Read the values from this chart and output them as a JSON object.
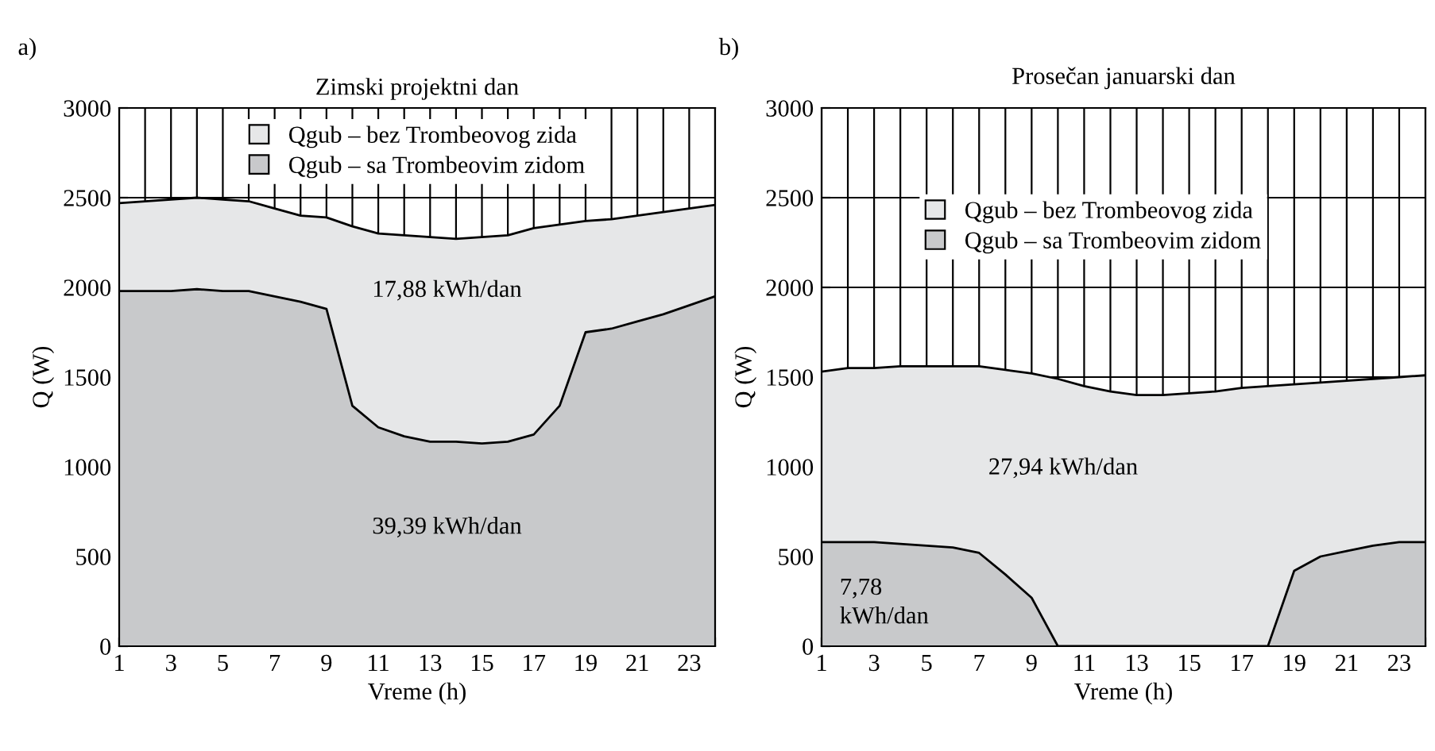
{
  "chart_data": [
    {
      "type": "area",
      "title": "Zimski projektni dan",
      "xlabel": "Vreme (h)",
      "ylabel": "Q (W)",
      "x": [
        1,
        2,
        3,
        4,
        5,
        6,
        7,
        8,
        9,
        10,
        11,
        12,
        13,
        14,
        15,
        16,
        17,
        18,
        19,
        20,
        21,
        22,
        23,
        24
      ],
      "series": [
        {
          "name": "Qgub – bez Trombeovog zida",
          "color": "#e6e7e8",
          "values": [
            2470,
            2480,
            2490,
            2500,
            2490,
            2480,
            2440,
            2400,
            2390,
            2340,
            2300,
            2290,
            2280,
            2270,
            2280,
            2290,
            2330,
            2350,
            2370,
            2380,
            2400,
            2420,
            2440,
            2460
          ]
        },
        {
          "name": "Qgub – sa Trombeovim zidom",
          "color": "#c8c9cb",
          "values": [
            1980,
            1980,
            1980,
            1990,
            1980,
            1980,
            1950,
            1920,
            1880,
            1340,
            1220,
            1170,
            1140,
            1140,
            1130,
            1140,
            1180,
            1340,
            1750,
            1770,
            1810,
            1850,
            1900,
            1950
          ]
        }
      ],
      "xlim": [
        1,
        24
      ],
      "xticks": [
        1,
        {
          "value": 2,
          "label": null
        },
        3,
        {
          "value": 4,
          "label": null
        },
        5,
        {
          "value": 6,
          "label": null
        },
        7,
        {
          "value": 8,
          "label": null
        },
        9,
        {
          "value": 10,
          "label": null
        },
        11,
        {
          "value": 12,
          "label": null
        },
        13,
        {
          "value": 14,
          "label": null
        },
        15,
        {
          "value": 16,
          "label": null
        },
        17,
        {
          "value": 18,
          "label": null
        },
        19,
        {
          "value": 20,
          "label": null
        },
        21,
        {
          "value": 22,
          "label": null
        },
        23,
        {
          "value": 24,
          "label": null
        }
      ],
      "ylim": [
        0,
        3000
      ],
      "yticks": [
        0,
        500,
        1000,
        1500,
        2000,
        2500,
        3000
      ],
      "grid": true,
      "legend": "top",
      "annotations": [
        "a)",
        "17,88 kWh/dan",
        "39,39 kWh/dan"
      ]
    },
    {
      "type": "area",
      "title": "Prosečan januarski dan",
      "xlabel": "Vreme (h)",
      "ylabel": "Q (W)",
      "x": [
        1,
        2,
        3,
        4,
        5,
        6,
        7,
        8,
        9,
        10,
        11,
        12,
        13,
        14,
        15,
        16,
        17,
        18,
        19,
        20,
        21,
        22,
        23,
        24
      ],
      "series": [
        {
          "name": "Qgub – bez Trombeovog zida",
          "color": "#e6e7e8",
          "values": [
            1530,
            1550,
            1550,
            1560,
            1560,
            1560,
            1560,
            1540,
            1520,
            1490,
            1450,
            1420,
            1400,
            1400,
            1410,
            1420,
            1440,
            1450,
            1460,
            1470,
            1480,
            1490,
            1500,
            1510
          ]
        },
        {
          "name": "Qgub – sa Trombeovim zidom",
          "color": "#c8c9cb",
          "values": [
            580,
            580,
            580,
            570,
            560,
            550,
            520,
            400,
            270,
            0,
            0,
            0,
            0,
            0,
            0,
            0,
            0,
            0,
            420,
            500,
            530,
            560,
            580,
            580
          ]
        }
      ],
      "xlim": [
        1,
        24
      ],
      "xticks": [
        1,
        {
          "value": 2,
          "label": null
        },
        3,
        {
          "value": 4,
          "label": null
        },
        5,
        {
          "value": 6,
          "label": null
        },
        7,
        {
          "value": 8,
          "label": null
        },
        9,
        {
          "value": 10,
          "label": null
        },
        11,
        {
          "value": 12,
          "label": null
        },
        13,
        {
          "value": 14,
          "label": null
        },
        15,
        {
          "value": 16,
          "label": null
        },
        17,
        {
          "value": 18,
          "label": null
        },
        19,
        {
          "value": 20,
          "label": null
        },
        21,
        {
          "value": 22,
          "label": null
        },
        23,
        {
          "value": 24,
          "label": null
        }
      ],
      "ylim": [
        0,
        3000
      ],
      "yticks": [
        0,
        500,
        1000,
        1500,
        2000,
        2500,
        3000
      ],
      "grid": true,
      "legend": "top",
      "annotations": [
        "b)",
        "27,94 kWh/dan",
        "7,78\nkWh/dan"
      ]
    }
  ]
}
